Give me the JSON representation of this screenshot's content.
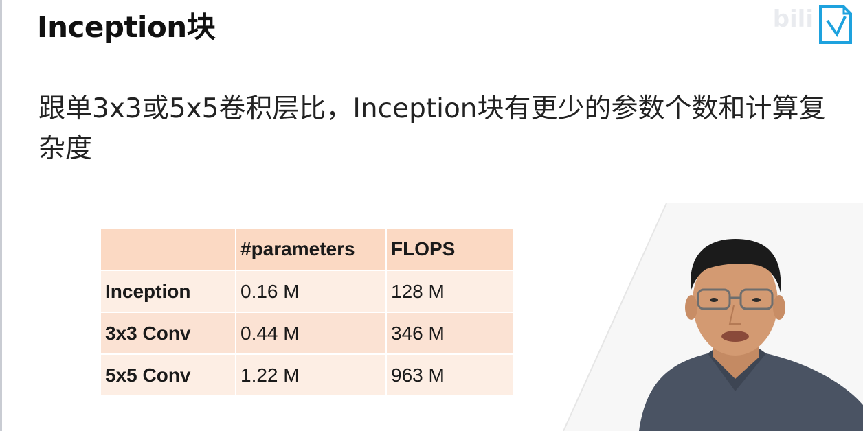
{
  "slide": {
    "title": "Inception块",
    "bullet": "跟单3x3或5x5卷积层比，Inception块有更少的参数个数和计算复杂度"
  },
  "table": {
    "headers": [
      "",
      "#parameters",
      "FLOPS"
    ],
    "rows": [
      {
        "name": "Inception",
        "parameters": "0.16 M",
        "flops": "128 M"
      },
      {
        "name": "3x3 Conv",
        "parameters": "0.44 M",
        "flops": "346 M"
      },
      {
        "name": "5x5 Conv",
        "parameters": "1.22 M",
        "flops": "963 M"
      }
    ]
  },
  "watermark": {
    "bili_text": "bili"
  },
  "colors": {
    "header_bg": "#fbd9c3",
    "row_light": "#fdeee4",
    "row_dark": "#fbe2d3",
    "logo_blue": "#1ea2de"
  },
  "icons": {
    "logo": "bilibili-logo-icon",
    "speaker": "presenter-video-overlay"
  }
}
